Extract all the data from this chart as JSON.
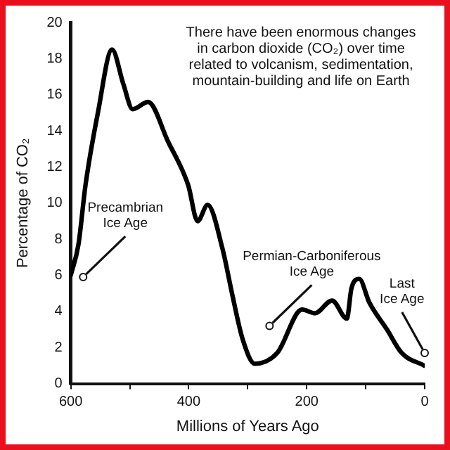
{
  "chart_data": {
    "type": "line",
    "title": "There have been enormous changes in carbon dioxide (CO₂) over time related to volcanism, sedimentation, mountain-building and life on Earth",
    "xlabel": "Millions of Years Ago",
    "ylabel": "Percentage of CO₂",
    "x": [
      600,
      587,
      575,
      554,
      530,
      511,
      495,
      469,
      435,
      401,
      385,
      368,
      343,
      326,
      309,
      288,
      250,
      208,
      186,
      157,
      132,
      124,
      111,
      94,
      64,
      39,
      1
    ],
    "series": [
      {
        "color": "#000000",
        "values": [
          6.0,
          7.7,
          11.0,
          15.0,
          18.5,
          16.6,
          15.2,
          15.6,
          13.4,
          11.0,
          9.0,
          9.9,
          7.5,
          4.9,
          2.5,
          1.1,
          1.7,
          4.1,
          3.9,
          4.6,
          3.6,
          5.3,
          5.8,
          4.5,
          3.0,
          1.7,
          1.0
        ]
      }
    ],
    "xlim": [
      600,
      0
    ],
    "xticks": [
      600,
      {
        "value": 500,
        "label": null
      },
      400,
      {
        "value": 300,
        "label": null
      },
      200,
      {
        "value": 100,
        "label": null
      },
      0
    ],
    "ylim": [
      0,
      20
    ],
    "yticks": [
      0,
      2,
      4,
      6,
      8,
      10,
      12,
      14,
      16,
      18,
      20
    ],
    "grid": false,
    "legend": false,
    "marker": "none",
    "line_style": "solid",
    "annotations": [
      {
        "text": "Precambrian Ice Age",
        "x": 579,
        "y": 5.9
      },
      {
        "text": "Permian-Carboniferous Ice Age",
        "x": 263,
        "y": 3.2
      },
      {
        "text": "Last Ice Age",
        "x": 0,
        "y": 1.7
      }
    ]
  }
}
